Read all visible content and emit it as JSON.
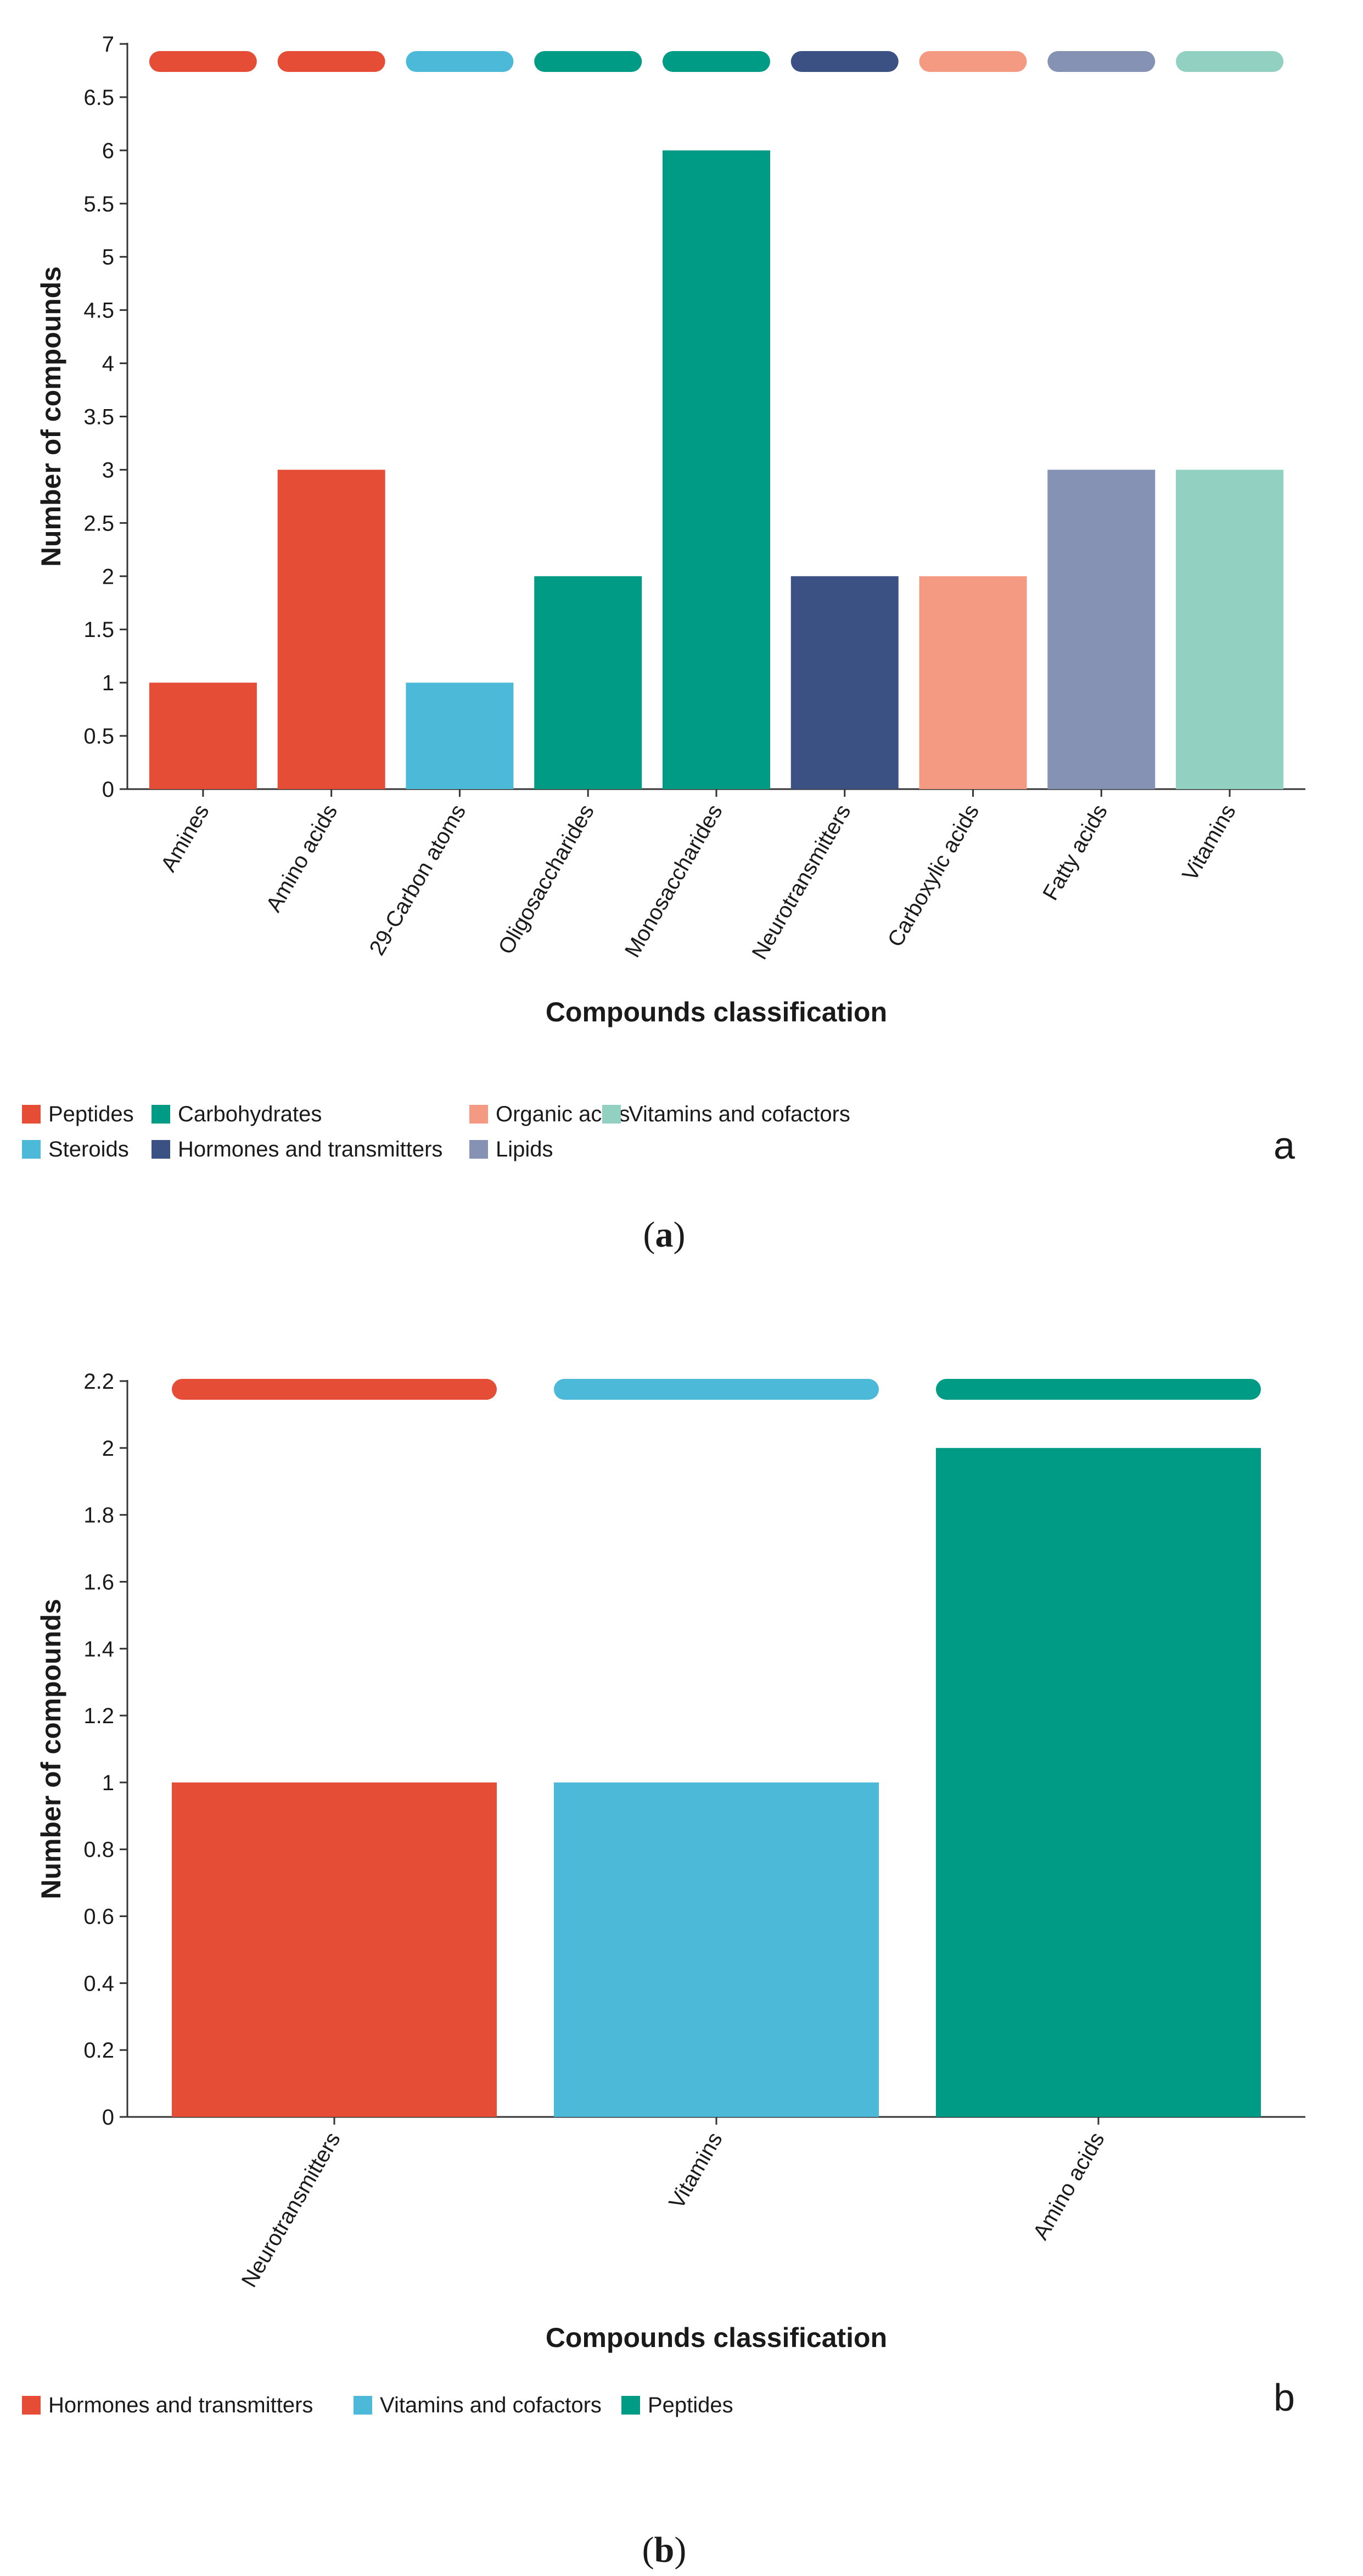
{
  "chart_data": [
    {
      "type": "bar",
      "categories": [
        "Amines",
        "Amino acids",
        "29-Carbon atoms",
        "Oligosaccharides",
        "Monosaccharides",
        "Neurotransmitters",
        "Carboxylic acids",
        "Fatty acids",
        "Vitamins"
      ],
      "values": [
        1,
        3,
        1,
        2,
        6,
        2,
        2,
        3,
        3
      ],
      "groups": [
        "Peptides",
        "Peptides",
        "Steroids",
        "Carbohydrates",
        "Carbohydrates",
        "Hormones and transmitters",
        "Organic acids",
        "Lipids",
        "Vitamins and cofactors"
      ],
      "xlabel": "Compounds classification",
      "ylabel": "Number of compounds",
      "ylim": [
        0,
        7
      ],
      "yticks": [
        "0",
        "0.5",
        "1",
        "1.5",
        "2",
        "2.5",
        "3",
        "3.5",
        "4",
        "4.5",
        "5",
        "5.5",
        "6",
        "6.5",
        "7"
      ],
      "legend": [
        {
          "name": "Peptides",
          "color": "#e64d37"
        },
        {
          "name": "Carbohydrates",
          "color": "#009b84"
        },
        {
          "name": "Organic acids",
          "color": "#f49a82"
        },
        {
          "name": "Vitamins and cofactors",
          "color": "#92d1c2"
        },
        {
          "name": "Steroids",
          "color": "#4cb9d9"
        },
        {
          "name": "Hormones and transmitters",
          "color": "#3b5184"
        },
        {
          "name": "Lipids",
          "color": "#8692b4"
        }
      ],
      "panel_letter": "a"
    },
    {
      "type": "bar",
      "categories": [
        "Neurotransmitters",
        "Vitamins",
        "Amino acids"
      ],
      "values": [
        1,
        1,
        2
      ],
      "groups": [
        "Hormones and transmitters",
        "Vitamins and cofactors",
        "Peptides"
      ],
      "xlabel": "Compounds classification",
      "ylabel": "Number of compounds",
      "ylim": [
        0,
        2.2
      ],
      "yticks": [
        "0",
        "0.2",
        "0.4",
        "0.6",
        "0.8",
        "1",
        "1.2",
        "1.4",
        "1.6",
        "1.8",
        "2",
        "2.2"
      ],
      "legend": [
        {
          "name": "Hormones and transmitters",
          "color": "#e64d37"
        },
        {
          "name": "Vitamins and cofactors",
          "color": "#4cb9d9"
        },
        {
          "name": "Peptides",
          "color": "#009b84"
        }
      ],
      "panel_letter": "b"
    }
  ],
  "captions": [
    {
      "open": "(",
      "letter": "a",
      "close": ")"
    },
    {
      "open": "(",
      "letter": "b",
      "close": ")"
    }
  ]
}
